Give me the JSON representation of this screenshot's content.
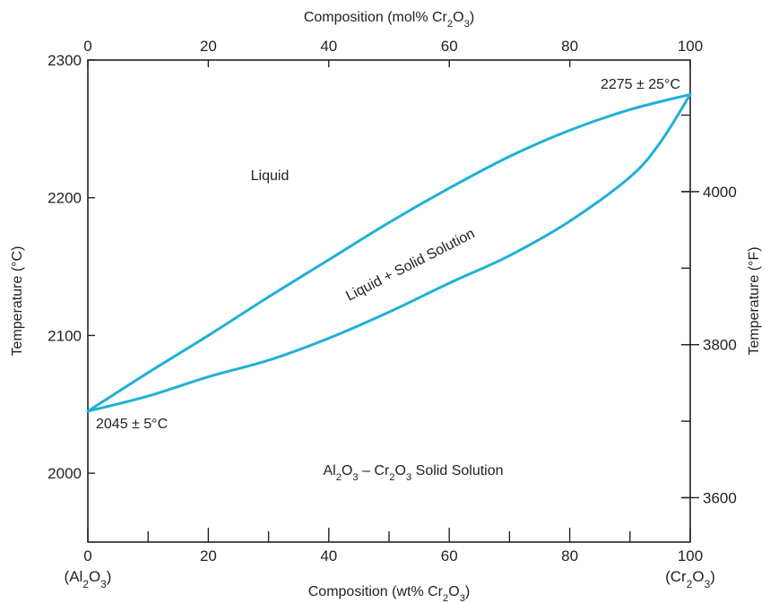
{
  "chart_data": {
    "type": "line",
    "xlabel_bottom": "Composition (wt% Cr₂O₃)",
    "xlabel_top": "Composition (mol% Cr₂O₃)",
    "ylabel_left": "Temperature (°C)",
    "ylabel_right": "Temperature (°F)",
    "xlim": [
      0,
      100
    ],
    "ylim": [
      1950,
      2300
    ],
    "x_ticks_bottom": [
      "0",
      "20",
      "40",
      "60",
      "80",
      "100"
    ],
    "x_ticks_top": [
      "0",
      "20",
      "40",
      "60",
      "80",
      "100"
    ],
    "y_ticks_left": [
      "2000",
      "2100",
      "2200",
      "2300"
    ],
    "y_ticks_right": [
      "3600",
      "3800",
      "4000"
    ],
    "x_end_labels": {
      "left": "(Al₂O₃)",
      "right": "(Cr₂O₃)"
    },
    "grid": false,
    "series": [
      {
        "x": [
          0,
          10,
          20,
          30,
          40,
          50,
          60,
          70,
          80,
          90,
          100
        ],
        "y": [
          2045,
          2073,
          2100,
          2128,
          2155,
          2182,
          2207,
          2230,
          2249,
          2264,
          2275
        ]
      },
      {
        "x": [
          0,
          10,
          20,
          30,
          40,
          50,
          60,
          70,
          80,
          90,
          95,
          100
        ],
        "y": [
          2045,
          2056,
          2070,
          2082,
          2098,
          2117,
          2138,
          2158,
          2183,
          2215,
          2240,
          2275
        ]
      }
    ],
    "annotations": [
      {
        "id": "liquid",
        "text": "Liquid"
      },
      {
        "id": "two-phase",
        "text": "Liquid + Solid Solution"
      },
      {
        "id": "solid",
        "text": "Al₂O₃ – Cr₂O₃ Solid Solution"
      },
      {
        "id": "melt-al",
        "text": "2045 ± 5°C"
      },
      {
        "id": "melt-cr",
        "text": "2275 ± 25°C"
      }
    ],
    "colors": {
      "curve": "#1fb0d8",
      "axis": "#222222"
    }
  }
}
